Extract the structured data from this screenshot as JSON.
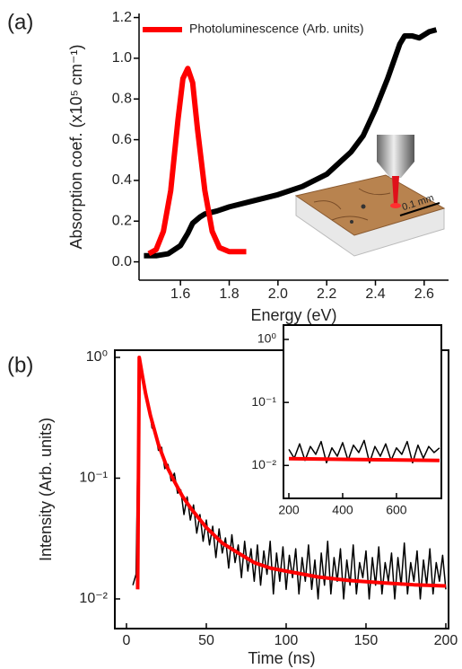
{
  "chart_data": [
    {
      "type": "line",
      "panel_label": "(a)",
      "xlabel": "Energy (eV)",
      "ylabel": "Absorption coef. (x10⁵ cm⁻¹)",
      "xlim": [
        1.43,
        2.7
      ],
      "ylim": [
        -0.09,
        1.22
      ],
      "xticks": [
        1.6,
        1.8,
        {
          "value": 2.0,
          "label": "2.0"
        },
        2.2,
        2.4,
        2.6
      ],
      "yticks": [
        {
          "value": 0,
          "label": "0.0"
        },
        0.2,
        0.4,
        0.6,
        0.8,
        {
          "value": 1.0,
          "label": "1.0"
        },
        1.2
      ],
      "log": false,
      "frame": false,
      "legend": "upper left",
      "annotation": "0.1 mm",
      "series": [
        {
          "color": "#000000",
          "x": [
            1.45,
            1.5,
            1.55,
            1.6,
            1.63,
            1.65,
            1.68,
            1.7,
            1.75,
            1.8,
            1.9,
            2.0,
            2.1,
            2.2,
            2.3,
            2.35,
            2.4,
            2.45,
            2.5,
            2.52,
            2.55,
            2.58,
            2.62,
            2.65
          ],
          "values": [
            0.03,
            0.03,
            0.04,
            0.08,
            0.14,
            0.19,
            0.22,
            0.235,
            0.25,
            0.27,
            0.3,
            0.33,
            0.37,
            0.43,
            0.54,
            0.62,
            0.75,
            0.9,
            1.07,
            1.11,
            1.11,
            1.1,
            1.13,
            1.14
          ]
        },
        {
          "name": "Photoluminescence (Arb. units)",
          "color": "#ff0000",
          "x": [
            1.47,
            1.5,
            1.53,
            1.56,
            1.59,
            1.61,
            1.63,
            1.65,
            1.67,
            1.7,
            1.73,
            1.76,
            1.8,
            1.87
          ],
          "values": [
            0.04,
            0.06,
            0.15,
            0.35,
            0.7,
            0.9,
            0.95,
            0.88,
            0.65,
            0.35,
            0.15,
            0.07,
            0.05,
            0.05
          ]
        }
      ]
    },
    {
      "type": "line",
      "panel_label": "(b)",
      "xlabel": "Time (ns)",
      "ylabel": "Intensity (Arb. units)",
      "xlim": [
        -7.3,
        201.7
      ],
      "ylim": [
        0.00568,
        1.147
      ],
      "xticks": [
        0,
        50,
        100,
        150,
        200
      ],
      "yticks": [
        {
          "value": 1,
          "label": "10⁰"
        },
        {
          "value": 0.1,
          "label": "10⁻¹"
        },
        {
          "value": 0.01,
          "label": "10⁻²"
        }
      ],
      "log": true,
      "frame": true,
      "series": [
        {
          "color": "#000000",
          "x": [
            4,
            6,
            8,
            10,
            12,
            14,
            16,
            18,
            20,
            22,
            24,
            26,
            28,
            30,
            32,
            34,
            36,
            38,
            40,
            42,
            44,
            46,
            48,
            50,
            52,
            54,
            56,
            58,
            60,
            62,
            64,
            66,
            68,
            70,
            72,
            74,
            76,
            78,
            80,
            82,
            84,
            86,
            88,
            90,
            92,
            94,
            96,
            98,
            100,
            102,
            104,
            106,
            108,
            110,
            112,
            114,
            116,
            118,
            120,
            122,
            124,
            126,
            128,
            130,
            132,
            134,
            136,
            138,
            140,
            142,
            144,
            146,
            148,
            150,
            152,
            154,
            156,
            158,
            160,
            162,
            164,
            166,
            168,
            170,
            172,
            174,
            176,
            178,
            180,
            182,
            184,
            186,
            188,
            190,
            192,
            194,
            196,
            198,
            200
          ],
          "values": [
            0.013,
            0.016,
            0.98,
            0.72,
            0.47,
            0.4,
            0.26,
            0.25,
            0.17,
            0.18,
            0.12,
            0.13,
            0.095,
            0.11,
            0.075,
            0.08,
            0.05,
            0.07,
            0.045,
            0.06,
            0.035,
            0.05,
            0.03,
            0.045,
            0.028,
            0.04,
            0.022,
            0.038,
            0.024,
            0.032,
            0.018,
            0.034,
            0.02,
            0.028,
            0.015,
            0.03,
            0.017,
            0.026,
            0.014,
            0.028,
            0.013,
            0.025,
            0.016,
            0.03,
            0.011,
            0.024,
            0.014,
            0.027,
            0.012,
            0.023,
            0.015,
            0.026,
            0.011,
            0.022,
            0.014,
            0.028,
            0.012,
            0.021,
            0.01,
            0.024,
            0.013,
            0.03,
            0.011,
            0.022,
            0.014,
            0.026,
            0.01,
            0.021,
            0.013,
            0.028,
            0.011,
            0.02,
            0.015,
            0.025,
            0.01,
            0.022,
            0.013,
            0.027,
            0.011,
            0.02,
            0.014,
            0.024,
            0.01,
            0.022,
            0.013,
            0.029,
            0.011,
            0.02,
            0.014,
            0.025,
            0.01,
            0.021,
            0.013,
            0.026,
            0.011,
            0.02,
            0.014,
            0.023,
            0.012
          ]
        },
        {
          "color": "#ff0000",
          "x": [
            7,
            8,
            10,
            12,
            15,
            20,
            25,
            30,
            35,
            40,
            50,
            60,
            70,
            80,
            90,
            100,
            120,
            140,
            160,
            180,
            200
          ],
          "values": [
            0.012,
            1.0,
            0.7,
            0.5,
            0.33,
            0.19,
            0.127,
            0.094,
            0.071,
            0.057,
            0.039,
            0.029,
            0.024,
            0.02,
            0.018,
            0.017,
            0.0152,
            0.0142,
            0.0136,
            0.0131,
            0.0128
          ]
        }
      ]
    },
    {
      "type": "line",
      "xlim": [
        180,
        767
      ],
      "ylim": [
        0.003,
        1.69
      ],
      "xticks": [
        200,
        400,
        600
      ],
      "yticks": [
        {
          "value": 1,
          "label": "10⁰"
        },
        {
          "value": 0.1,
          "label": "10⁻¹"
        },
        {
          "value": 0.01,
          "label": "10⁻²"
        }
      ],
      "log": true,
      "frame": true,
      "series": [
        {
          "color": "#000000",
          "x": [
            200,
            220,
            240,
            260,
            280,
            300,
            320,
            340,
            360,
            380,
            400,
            420,
            440,
            460,
            480,
            500,
            520,
            540,
            560,
            580,
            600,
            620,
            640,
            660,
            680,
            700,
            720,
            740,
            760
          ],
          "values": [
            0.018,
            0.013,
            0.022,
            0.012,
            0.02,
            0.015,
            0.024,
            0.011,
            0.019,
            0.014,
            0.023,
            0.012,
            0.021,
            0.016,
            0.025,
            0.011,
            0.02,
            0.014,
            0.022,
            0.012,
            0.019,
            0.015,
            0.024,
            0.011,
            0.021,
            0.013,
            0.02,
            0.016,
            0.019
          ]
        },
        {
          "color": "#ff0000",
          "x": [
            200,
            760
          ],
          "values": [
            0.0128,
            0.012
          ]
        }
      ]
    }
  ]
}
